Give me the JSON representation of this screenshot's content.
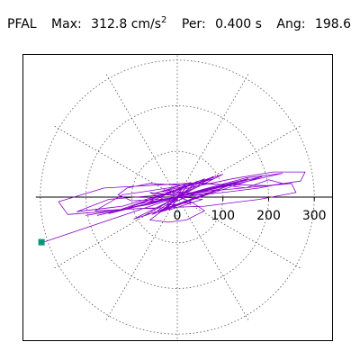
{
  "header": {
    "station": "PFAL",
    "max_label": "Max:",
    "max_value": "312.8 cm/s",
    "max_exp": "2",
    "per_label": "Per:",
    "per_value": "0.400 s",
    "ang_label": "Ang:",
    "ang_value": "198.6"
  },
  "chart_data": {
    "type": "polar-orbit",
    "title": "PFAL  Max: 312.8 cm/s2  Per: 0.400 s  Ang: 198.6",
    "station": "PFAL",
    "max_amplitude": 312.8,
    "max_unit": "cm/s^2",
    "period_s": 0.4,
    "angle_deg": 198.6,
    "r_ticks": [
      0,
      100,
      200,
      300
    ],
    "r_tick_labels": [
      "0",
      "100",
      "200",
      "300"
    ],
    "r_rings": [
      100,
      200,
      300
    ],
    "r_max": 312.8,
    "spoke_step_deg": 30,
    "grid": true,
    "grid_style": "dotted",
    "trace_color": "#8800cc",
    "marker_color": "#009977",
    "marker_point": {
      "r": 312.8,
      "angle_deg": 198.6
    },
    "trace_path": [
      [
        0,
        0
      ],
      [
        15,
        10
      ],
      [
        -20,
        15
      ],
      [
        30,
        -12
      ],
      [
        -25,
        -18
      ],
      [
        40,
        8
      ],
      [
        -35,
        12
      ],
      [
        22,
        25
      ],
      [
        -18,
        -28
      ],
      [
        55,
        -5
      ],
      [
        -50,
        8
      ],
      [
        30,
        32
      ],
      [
        -28,
        -30
      ],
      [
        70,
        10
      ],
      [
        -65,
        -12
      ],
      [
        45,
        35
      ],
      [
        -40,
        -34
      ],
      [
        95,
        18
      ],
      [
        -90,
        -16
      ],
      [
        60,
        40
      ],
      [
        -55,
        -38
      ],
      [
        125,
        30
      ],
      [
        -120,
        -28
      ],
      [
        80,
        45
      ],
      [
        -75,
        -42
      ],
      [
        155,
        40
      ],
      [
        -150,
        -36
      ],
      [
        100,
        50
      ],
      [
        -95,
        -48
      ],
      [
        185,
        45
      ],
      [
        -175,
        -40
      ],
      [
        230,
        52
      ],
      [
        150,
        42
      ],
      [
        60,
        18
      ],
      [
        -60,
        -16
      ],
      [
        -200,
        -40
      ],
      [
        -140,
        -30
      ],
      [
        -240,
        -38
      ],
      [
        -260,
        -10
      ],
      [
        -160,
        20
      ],
      [
        20,
        30
      ],
      [
        200,
        25
      ],
      [
        270,
        35
      ],
      [
        280,
        55
      ],
      [
        210,
        55
      ],
      [
        120,
        40
      ],
      [
        0,
        15
      ],
      [
        -120,
        -20
      ],
      [
        -220,
        -32
      ],
      [
        -150,
        -5
      ],
      [
        -30,
        5
      ],
      [
        90,
        15
      ],
      [
        250,
        30
      ],
      [
        260,
        10
      ],
      [
        180,
        -5
      ],
      [
        60,
        -20
      ],
      [
        -80,
        -25
      ],
      [
        -180,
        -30
      ],
      [
        -120,
        5
      ],
      [
        -20,
        20
      ],
      [
        40,
        32
      ],
      [
        90,
        28
      ],
      [
        150,
        20
      ],
      [
        200,
        38
      ],
      [
        230,
        30
      ],
      [
        180,
        20
      ],
      [
        100,
        10
      ],
      [
        -40,
        -5
      ],
      [
        -100,
        -8
      ],
      [
        -130,
        5
      ],
      [
        -110,
        20
      ],
      [
        -60,
        30
      ],
      [
        20,
        25
      ],
      [
        80,
        40
      ],
      [
        40,
        30
      ],
      [
        20,
        15
      ],
      [
        -20,
        -20
      ],
      [
        -60,
        -50
      ],
      [
        -20,
        -55
      ],
      [
        20,
        -50
      ],
      [
        60,
        -30
      ],
      [
        30,
        -10
      ],
      [
        -10,
        5
      ],
      [
        -60,
        10
      ],
      [
        -20,
        -10
      ],
      [
        10,
        20
      ],
      [
        0,
        0
      ],
      [
        -296.5,
        -99.8
      ]
    ]
  }
}
